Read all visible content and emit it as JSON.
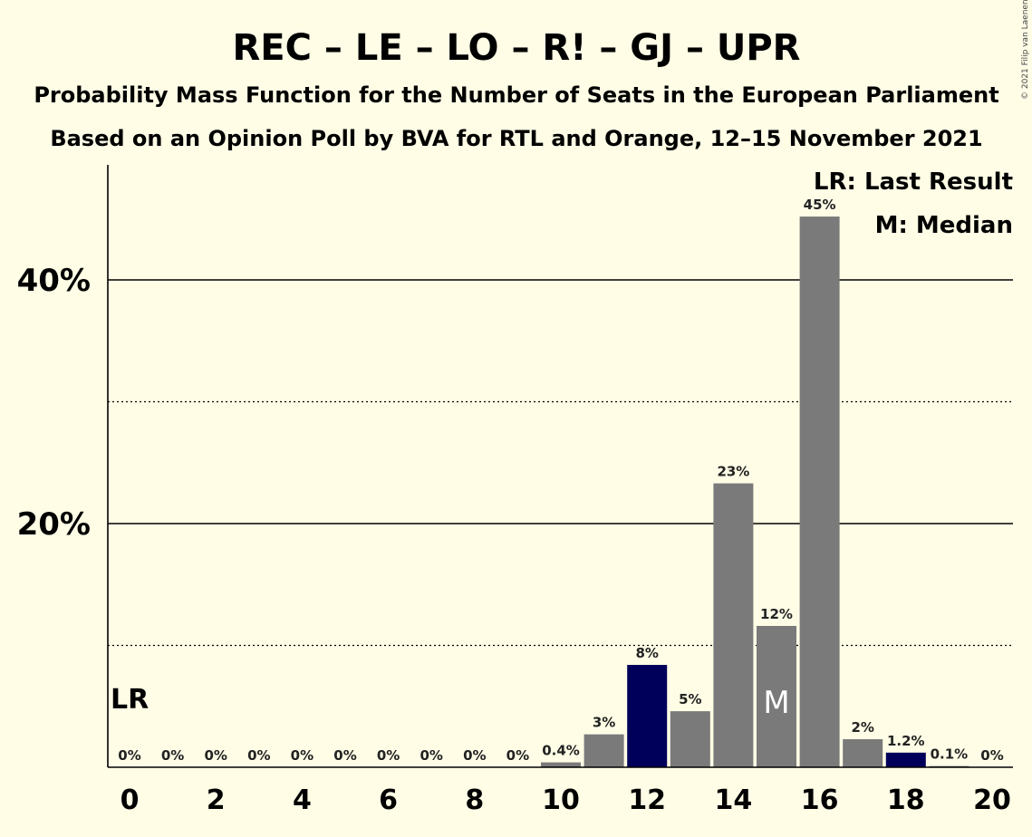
{
  "title": "REC – LE – LO – R! – GJ – UPR",
  "subtitle1": "Probability Mass Function for the Number of Seats in the European Parliament",
  "subtitle2": "Based on an Opinion Poll by BVA for RTL and Orange, 12–15 November 2021",
  "copyright": "© 2021 Filip van Laenen",
  "legend": {
    "last_result": "LR: Last Result",
    "median": "M: Median"
  },
  "markers": {
    "last_result": "LR",
    "median": "M"
  },
  "chart_data": {
    "type": "bar",
    "x": [
      0,
      1,
      2,
      3,
      4,
      5,
      6,
      7,
      8,
      9,
      10,
      11,
      12,
      13,
      14,
      15,
      16,
      17,
      18,
      19,
      20
    ],
    "values": [
      0,
      0,
      0,
      0,
      0,
      0,
      0,
      0,
      0,
      0,
      0.4,
      2.7,
      8.4,
      4.6,
      23.3,
      11.6,
      45.2,
      2.3,
      1.2,
      0.1,
      0
    ],
    "value_labels": [
      "0%",
      "0%",
      "0%",
      "0%",
      "0%",
      "0%",
      "0%",
      "0%",
      "0%",
      "0%",
      "0.4%",
      "3%",
      "8%",
      "5%",
      "23%",
      "12%",
      "45%",
      "2%",
      "1.2%",
      "0.1%",
      "0%"
    ],
    "highlight": [
      12,
      18
    ],
    "x_ticks": [
      "0",
      "2",
      "4",
      "6",
      "8",
      "10",
      "12",
      "14",
      "16",
      "18",
      "20"
    ],
    "y_ticks": [
      "20%",
      "40%"
    ],
    "ylim": [
      0,
      49
    ],
    "last_result_seat": 0,
    "median_seat": 15,
    "colors": {
      "bar": "#7a7a7a",
      "highlight": "#00005a",
      "background": "#fffde6",
      "label_stroke": "#fffde6"
    }
  }
}
